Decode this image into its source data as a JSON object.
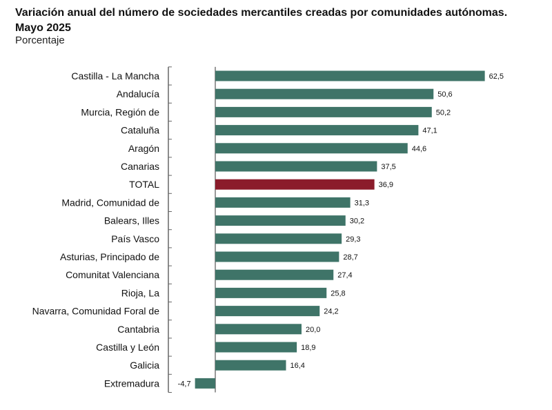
{
  "header": {
    "title_line1": "Variación anual del número de sociedades mercantiles creadas por comunidades autónomas.",
    "title_line2": "Mayo 2025",
    "unit": "Porcentaje"
  },
  "chart_data": {
    "type": "bar",
    "orientation": "horizontal",
    "title": "Variación anual del número de sociedades mercantiles creadas por comunidades autónomas. Mayo 2025",
    "subtitle": "Porcentaje",
    "categories": [
      "Castilla - La Mancha",
      "Andalucía",
      "Murcia, Región de",
      "Cataluña",
      "Aragón",
      "Canarias",
      "TOTAL",
      "Madrid, Comunidad de",
      "Balears, Illes",
      "País Vasco",
      "Asturias, Principado de",
      "Comunitat Valenciana",
      "Rioja, La",
      "Navarra, Comunidad Foral de",
      "Cantabria",
      "Castilla y León",
      "Galicia",
      "Extremadura"
    ],
    "values": [
      62.5,
      50.6,
      50.2,
      47.1,
      44.6,
      37.5,
      36.9,
      31.3,
      30.2,
      29.3,
      28.7,
      27.4,
      25.8,
      24.2,
      20.0,
      18.9,
      16.4,
      -4.7
    ],
    "value_labels": [
      "62,5",
      "50,6",
      "50,2",
      "47,1",
      "44,6",
      "37,5",
      "36,9",
      "31,3",
      "30,2",
      "29,3",
      "28,7",
      "27,4",
      "25,8",
      "24,2",
      "20,0",
      "18,9",
      "16,4",
      "-4,7"
    ],
    "colors": {
      "default": "#3f7468",
      "highlight": "#8b1c2b",
      "axis": "#666666"
    },
    "highlight_category": "TOTAL",
    "grid": false,
    "legend": "none"
  }
}
